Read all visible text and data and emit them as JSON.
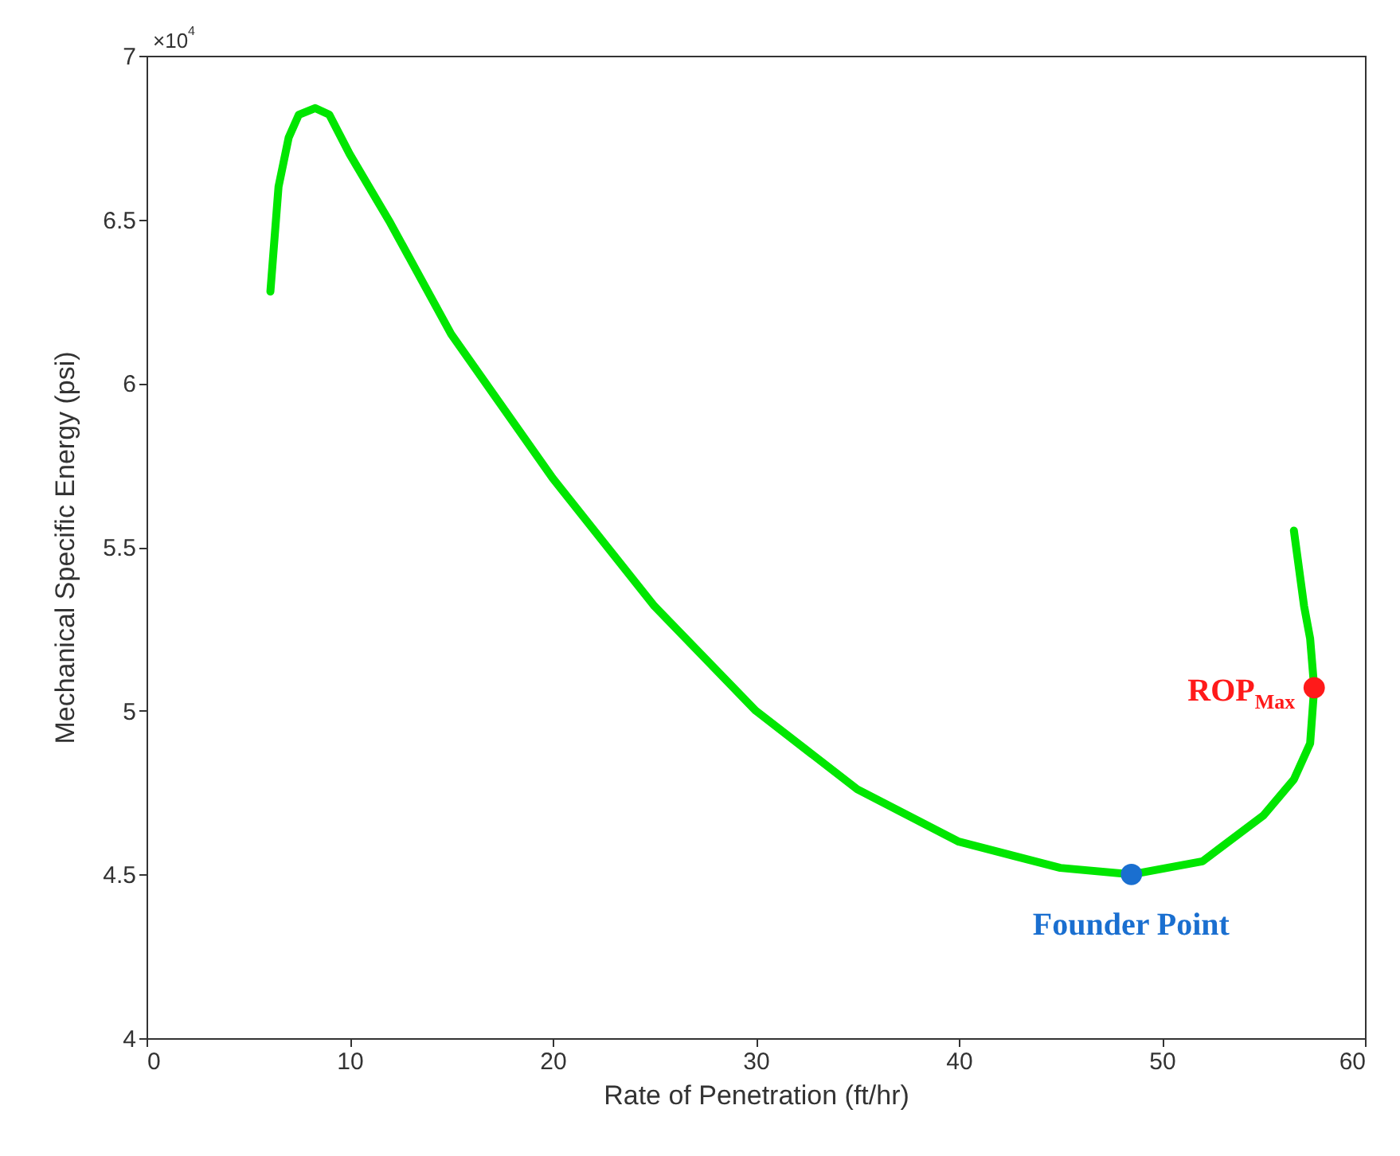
{
  "chart_data": {
    "type": "line",
    "xlabel": "Rate of Penetration (ft/hr)",
    "ylabel": "Mechanical Specific Energy (psi)",
    "xlim": [
      0,
      60
    ],
    "xticks": [
      0,
      10,
      20,
      30,
      40,
      50,
      60
    ],
    "ylim": [
      4,
      7
    ],
    "yticks": [
      4,
      4.5,
      5,
      5.5,
      6,
      6.5,
      7
    ],
    "line_style": "solid",
    "series": [
      {
        "color": "#00e600",
        "x": [
          6.1,
          6.5,
          7,
          7.5,
          8.3,
          9,
          10,
          12,
          15,
          20,
          25,
          30,
          35,
          40,
          45,
          48.5,
          52,
          55,
          56.5,
          57.3,
          57.5,
          57.3,
          57,
          56.5
        ],
        "values": [
          6.28,
          6.6,
          6.75,
          6.82,
          6.84,
          6.82,
          6.7,
          6.49,
          6.15,
          5.71,
          5.32,
          5,
          4.76,
          4.6,
          4.52,
          4.5,
          4.54,
          4.68,
          4.79,
          4.9,
          5.07,
          5.22,
          5.32,
          5.55
        ]
      },
      {
        "type": "scatter",
        "marker": "circle",
        "color": "#1a6fd0",
        "x": [
          48.5
        ],
        "values": [
          4.5
        ]
      },
      {
        "type": "scatter",
        "marker": "circle",
        "color": "#ff1a1a",
        "x": [
          57.5
        ],
        "values": [
          5.07
        ]
      }
    ],
    "annotations": [
      "×10$^{4}$",
      {
        "text": "Founder Point",
        "x": 48.5,
        "y": 4.5
      },
      {
        "text": "ROP$_{Max}$",
        "x": 57.5,
        "y": 5.07
      }
    ]
  }
}
